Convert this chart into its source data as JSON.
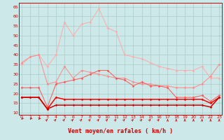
{
  "x": [
    0,
    1,
    2,
    3,
    4,
    5,
    6,
    7,
    8,
    9,
    10,
    11,
    12,
    13,
    14,
    15,
    16,
    17,
    18,
    19,
    20,
    21,
    22,
    23
  ],
  "line1": [
    35,
    39,
    40,
    34,
    40,
    57,
    50,
    56,
    57,
    64,
    54,
    52,
    40,
    39,
    38,
    36,
    34,
    33,
    32,
    32,
    32,
    34,
    28,
    28
  ],
  "line2": [
    36,
    39,
    40,
    25,
    26,
    34,
    28,
    32,
    31,
    30,
    29,
    28,
    28,
    26,
    25,
    25,
    24,
    24,
    23,
    23,
    23,
    25,
    29,
    35
  ],
  "line3": [
    23,
    23,
    23,
    13,
    25,
    26,
    27,
    28,
    30,
    32,
    32,
    28,
    27,
    24,
    26,
    24,
    24,
    23,
    18,
    18,
    18,
    19,
    16,
    19
  ],
  "line4": [
    18,
    18,
    18,
    12,
    18,
    17,
    17,
    17,
    17,
    17,
    17,
    17,
    17,
    17,
    17,
    17,
    17,
    17,
    17,
    17,
    17,
    17,
    15,
    18
  ],
  "line5": [
    18,
    18,
    18,
    12,
    14,
    14,
    14,
    14,
    14,
    14,
    14,
    14,
    14,
    14,
    14,
    14,
    14,
    14,
    14,
    14,
    14,
    14,
    13,
    18
  ],
  "bg_color": "#cce8e8",
  "grid_color": "#aacccc",
  "line1_color": "#ffaaaa",
  "line2_color": "#ff8888",
  "line3_color": "#ff5555",
  "line4_color": "#ff0000",
  "line5_color": "#cc0000",
  "xlabel": "Vent moyen/en rafales ( km/h )",
  "yticks": [
    10,
    15,
    20,
    25,
    30,
    35,
    40,
    45,
    50,
    55,
    60,
    65
  ],
  "xticks": [
    0,
    1,
    2,
    3,
    4,
    5,
    6,
    7,
    8,
    9,
    10,
    11,
    12,
    13,
    14,
    15,
    16,
    17,
    18,
    19,
    20,
    21,
    22,
    23
  ],
  "ylim": [
    9,
    67
  ],
  "xlim": [
    -0.3,
    23.3
  ]
}
